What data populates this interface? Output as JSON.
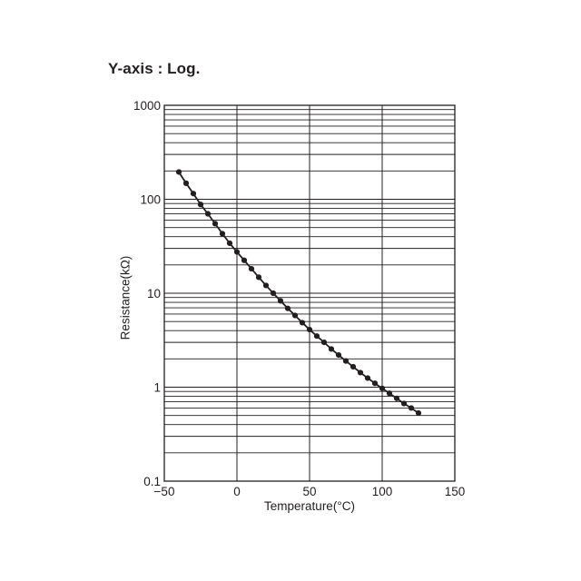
{
  "caption": "Y-axis : Log.",
  "chart_data": {
    "type": "line",
    "xlabel": "Temperature(°C)",
    "ylabel": "Resistance(kΩ)",
    "xscale": "linear",
    "yscale": "log",
    "xlim": [
      -50,
      150
    ],
    "ylim": [
      0.1,
      1000
    ],
    "x_ticks": [
      -50,
      0,
      50,
      100,
      150
    ],
    "x_tick_labels": [
      "−50",
      "0",
      "50",
      "100",
      "150"
    ],
    "y_ticks": [
      0.1,
      1,
      10,
      100,
      1000
    ],
    "y_tick_labels": [
      "0.1",
      "1",
      "10",
      "100",
      "1000"
    ],
    "grid": true,
    "legend": "none",
    "series": [
      {
        "color": "#231f20",
        "marker": "circle",
        "x": [
          -40,
          -35,
          -30,
          -25,
          -20,
          -15,
          -10,
          -5,
          0,
          5,
          10,
          15,
          20,
          25,
          30,
          35,
          40,
          45,
          50,
          55,
          60,
          65,
          70,
          75,
          80,
          85,
          90,
          95,
          100,
          105,
          110,
          115,
          120,
          125
        ],
        "y": [
          195,
          148,
          115,
          88,
          70,
          55,
          43,
          34,
          27.5,
          22.4,
          18.2,
          14.8,
          12.1,
          10,
          8.3,
          6.9,
          5.8,
          4.86,
          4.1,
          3.5,
          3.0,
          2.55,
          2.2,
          1.9,
          1.65,
          1.43,
          1.25,
          1.1,
          0.97,
          0.86,
          0.76,
          0.67,
          0.6,
          0.53
        ]
      }
    ]
  }
}
